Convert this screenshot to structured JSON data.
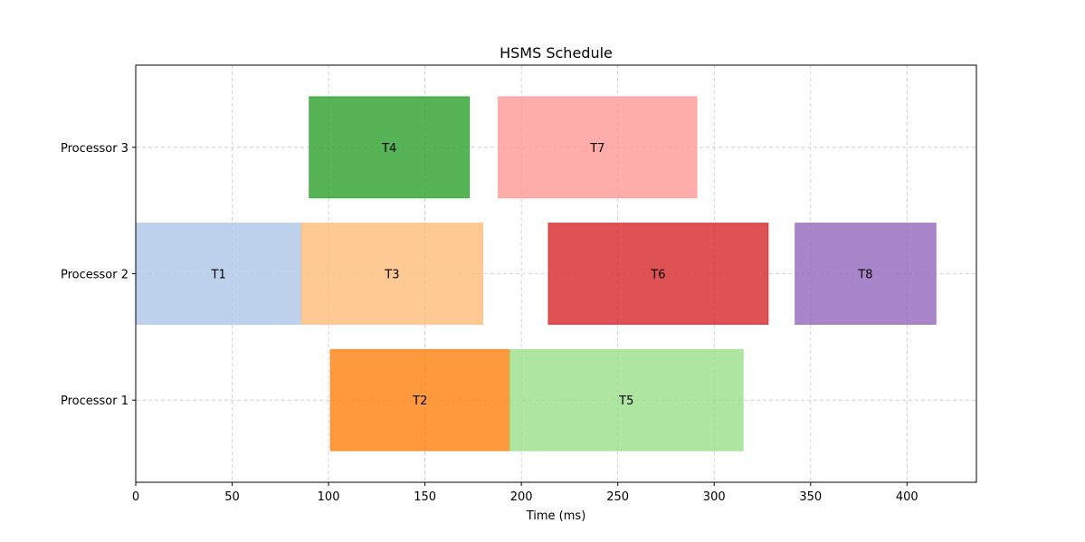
{
  "chart_data": {
    "type": "gantt",
    "title": "HSMS Schedule",
    "xlabel": "Time (ms)",
    "ylabel": "",
    "xlim": [
      0,
      436
    ],
    "xticks": [
      0,
      50,
      100,
      150,
      200,
      250,
      300,
      350,
      400
    ],
    "processors": [
      "Processor 1",
      "Processor 2",
      "Processor 3"
    ],
    "grid": true,
    "tasks": [
      {
        "name": "T1",
        "processor": "Processor 2",
        "start": 0,
        "end": 86,
        "color": "#aec7e8",
        "opacity": 0.8
      },
      {
        "name": "T2",
        "processor": "Processor 1",
        "start": 101,
        "end": 194,
        "color": "#ff7f0e",
        "opacity": 0.8
      },
      {
        "name": "T3",
        "processor": "Processor 2",
        "start": 86,
        "end": 180,
        "color": "#ffbb78",
        "opacity": 0.8
      },
      {
        "name": "T4",
        "processor": "Processor 3",
        "start": 90,
        "end": 173,
        "color": "#2ca02c",
        "opacity": 0.8
      },
      {
        "name": "T5",
        "processor": "Processor 1",
        "start": 194,
        "end": 315,
        "color": "#98df8a",
        "opacity": 0.8
      },
      {
        "name": "T6",
        "processor": "Processor 2",
        "start": 214,
        "end": 328,
        "color": "#d62728",
        "opacity": 0.8
      },
      {
        "name": "T7",
        "processor": "Processor 3",
        "start": 188,
        "end": 291,
        "color": "#ff9896",
        "opacity": 0.8
      },
      {
        "name": "T8",
        "processor": "Processor 2",
        "start": 342,
        "end": 415,
        "color": "#9467bd",
        "opacity": 0.8
      }
    ]
  }
}
